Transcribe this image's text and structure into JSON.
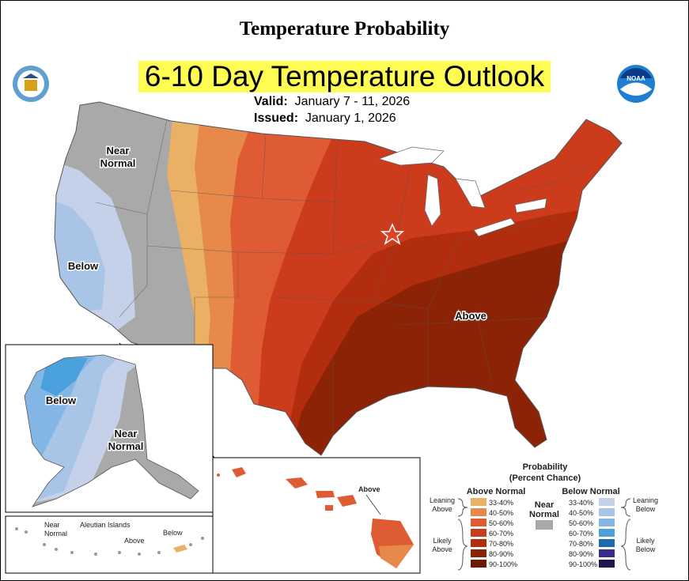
{
  "header": {
    "title": "Temperature Probability",
    "outlook": "6-10 Day Temperature Outlook",
    "valid_label": "Valid:",
    "valid_dates": "January 7 - 11, 2026",
    "issued_label": "Issued:",
    "issued_date": "January 1, 2026"
  },
  "logos": {
    "left": "Department of Commerce seal",
    "right_text": "NOAA"
  },
  "regions": {
    "west_near": "Near\nNormal",
    "west_below": "Below",
    "east_above": "Above",
    "alaska_below": "Below",
    "alaska_near": "Near\nNormal",
    "hawaii_above": "Above",
    "aleutian_title": "Aleutian Islands",
    "aleutian_near": "Near\nNormal",
    "aleutian_above": "Above",
    "aleutian_below": "Below"
  },
  "legend": {
    "title": "Probability",
    "subtitle": "(Percent Chance)",
    "above_header": "Above Normal",
    "below_header": "Below Normal",
    "near_label": "Near\nNormal",
    "leaning_above": "Leaning\nAbove",
    "likely_above": "Likely\nAbove",
    "leaning_below": "Leaning\nBelow",
    "likely_below": "Likely\nBelow",
    "above_bins": [
      {
        "label": "33-40%",
        "color": "#e9b066"
      },
      {
        "label": "40-50%",
        "color": "#e6894b"
      },
      {
        "label": "50-60%",
        "color": "#df5b33"
      },
      {
        "label": "60-70%",
        "color": "#cc3b1b"
      },
      {
        "label": "70-80%",
        "color": "#b22d0d"
      },
      {
        "label": "80-90%",
        "color": "#8c2306"
      },
      {
        "label": "90-100%",
        "color": "#6b1a06"
      }
    ],
    "near_color": "#a9a9a9",
    "below_bins": [
      {
        "label": "33-40%",
        "color": "#c5d0e9"
      },
      {
        "label": "40-50%",
        "color": "#a8c4e6"
      },
      {
        "label": "50-60%",
        "color": "#83b6e4"
      },
      {
        "label": "60-70%",
        "color": "#4aa1dc"
      },
      {
        "label": "70-80%",
        "color": "#1b6aae"
      },
      {
        "label": "80-90%",
        "color": "#3b2b8f"
      },
      {
        "label": "90-100%",
        "color": "#221550"
      }
    ]
  }
}
